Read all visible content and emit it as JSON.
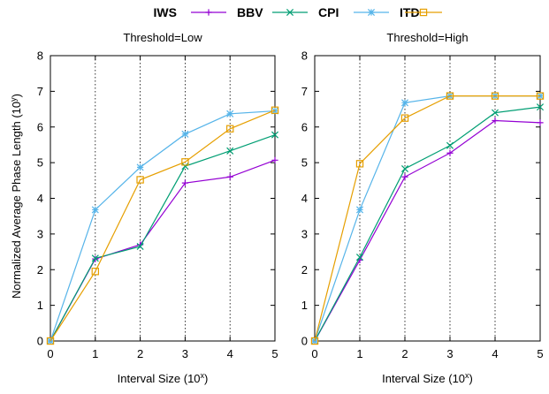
{
  "legend": {
    "entries": [
      "BBV",
      "CPI",
      "ITD"
    ],
    "title_words": [
      "IWS"
    ],
    "placement": "top-center"
  },
  "y_axis_label": "Normalized Average Phase Length (10",
  "y_axis_label_sup": "y",
  "y_axis_label_tail": ")",
  "x_axis_label": "Interval Size (10",
  "x_axis_label_sup": "x",
  "x_axis_label_tail": ")",
  "colors": {
    "BBV": "#9400D3",
    "CPI": "#009E73",
    "ITD": "#56B4E9",
    "IWS": "#E69F00"
  },
  "chart_data": [
    {
      "type": "line",
      "title": "Threshold=Low",
      "x": [
        0,
        1,
        2,
        3,
        4,
        5
      ],
      "xlim": [
        0,
        5
      ],
      "ylim": [
        0,
        8
      ],
      "x_ticks": [
        0,
        1,
        2,
        3,
        4,
        5
      ],
      "y_ticks": [
        0,
        1,
        2,
        3,
        4,
        5,
        6,
        7,
        8
      ],
      "vertical_gridlines": [
        1,
        2,
        3,
        4
      ],
      "series": [
        {
          "name": "BBV",
          "marker": "plus",
          "values": [
            0,
            2.3,
            2.7,
            4.43,
            4.6,
            5.07
          ]
        },
        {
          "name": "CPI",
          "marker": "x",
          "values": [
            0,
            2.32,
            2.65,
            4.9,
            5.33,
            5.78
          ]
        },
        {
          "name": "ITD",
          "marker": "star",
          "values": [
            0,
            3.68,
            4.87,
            5.8,
            6.37,
            6.45
          ]
        },
        {
          "name": "IWS",
          "marker": "square",
          "values": [
            0,
            1.95,
            4.52,
            5.02,
            5.95,
            6.47
          ]
        }
      ]
    },
    {
      "type": "line",
      "title": "Threshold=High",
      "x": [
        0,
        1,
        2,
        3,
        4,
        5
      ],
      "xlim": [
        0,
        5
      ],
      "ylim": [
        0,
        8
      ],
      "x_ticks": [
        0,
        1,
        2,
        3,
        4,
        5
      ],
      "y_ticks": [
        0,
        1,
        2,
        3,
        4,
        5,
        6,
        7,
        8
      ],
      "vertical_gridlines": [
        1,
        2,
        3,
        4
      ],
      "series": [
        {
          "name": "BBV",
          "marker": "plus",
          "values": [
            0,
            2.27,
            4.6,
            5.27,
            6.18,
            6.12
          ]
        },
        {
          "name": "CPI",
          "marker": "x",
          "values": [
            0,
            2.35,
            4.83,
            5.48,
            6.4,
            6.56
          ]
        },
        {
          "name": "ITD",
          "marker": "star",
          "values": [
            0,
            3.68,
            6.68,
            6.87,
            6.87,
            6.87
          ]
        },
        {
          "name": "IWS",
          "marker": "square",
          "values": [
            0,
            4.97,
            6.25,
            6.87,
            6.87,
            6.87
          ]
        }
      ]
    }
  ]
}
